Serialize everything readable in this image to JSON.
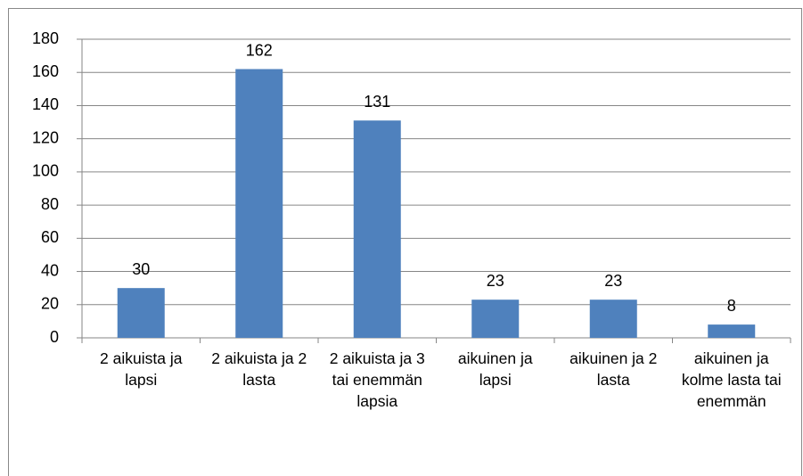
{
  "chart_data": {
    "type": "bar",
    "categories": [
      "2 aikuista ja lapsi",
      "2 aikuista ja 2 lasta",
      "2 aikuista ja 3 tai enemmän lapsia",
      "aikuinen ja lapsi",
      "aikuinen ja 2 lasta",
      "aikuinen ja kolme lasta tai enemmän"
    ],
    "values": [
      30,
      162,
      131,
      23,
      23,
      8
    ],
    "color": "#4f81bd",
    "ylim": [
      0,
      180
    ],
    "yticks": [
      0,
      20,
      40,
      60,
      80,
      100,
      120,
      140,
      160,
      180
    ],
    "grid": true
  }
}
